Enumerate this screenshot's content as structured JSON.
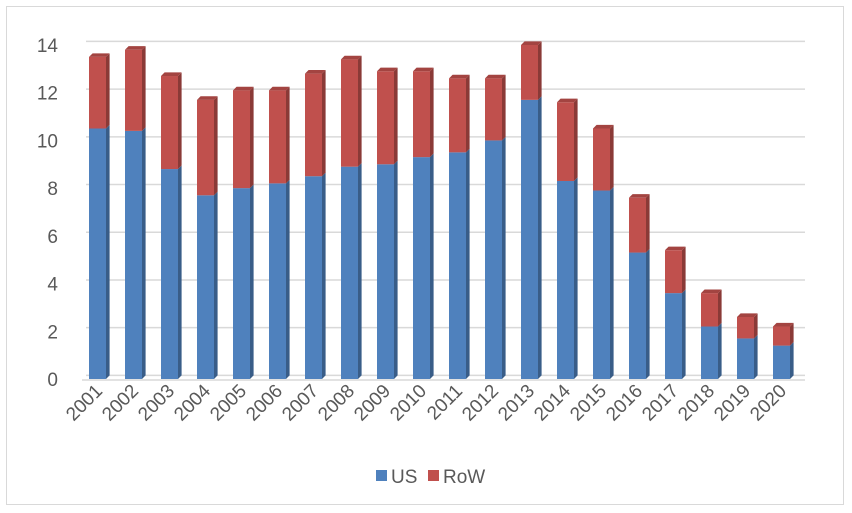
{
  "chart_data": {
    "type": "bar",
    "stacked": true,
    "three_d": true,
    "categories": [
      "2001",
      "2002",
      "2003",
      "2004",
      "2005",
      "2006",
      "2007",
      "2008",
      "2009",
      "2010",
      "2011",
      "2012",
      "2013",
      "2014",
      "2015",
      "2016",
      "2017",
      "2018",
      "2019",
      "2020"
    ],
    "series": [
      {
        "name": "US",
        "color": "#4F81BD",
        "values": [
          10.5,
          10.4,
          8.8,
          7.7,
          8.0,
          8.2,
          8.5,
          8.9,
          9.0,
          9.3,
          9.5,
          10.0,
          11.7,
          8.3,
          7.9,
          5.3,
          3.6,
          2.2,
          1.7,
          1.4
        ]
      },
      {
        "name": "RoW",
        "color": "#C0504D",
        "values": [
          3.0,
          3.4,
          3.9,
          4.0,
          4.1,
          3.9,
          4.3,
          4.5,
          3.9,
          3.6,
          3.1,
          2.6,
          2.3,
          3.3,
          2.6,
          2.3,
          1.8,
          1.4,
          0.9,
          0.8
        ]
      }
    ],
    "yticks": [
      "0",
      "2",
      "4",
      "6",
      "8",
      "10",
      "12",
      "14"
    ],
    "ylim": [
      0,
      14
    ],
    "grid": true,
    "legend_position": "bottom"
  }
}
